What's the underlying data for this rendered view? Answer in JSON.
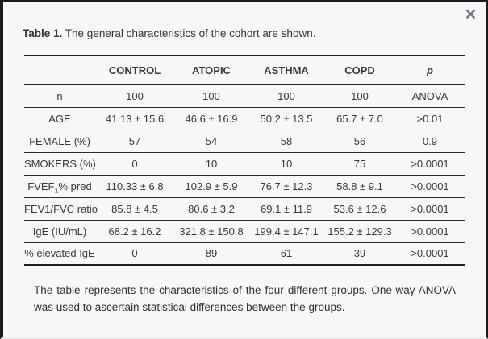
{
  "window": {
    "close_icon": "✕"
  },
  "caption": {
    "label": "Table 1.",
    "text": "The general characteristics of the cohort are shown."
  },
  "table": {
    "columns": [
      "",
      "CONTROL",
      "ATOPIC",
      "ASTHMA",
      "COPD",
      "p"
    ],
    "rows": [
      {
        "label": "n",
        "values": [
          "100",
          "100",
          "100",
          "100",
          "ANOVA"
        ]
      },
      {
        "label": "AGE",
        "values": [
          "41.13 ± 15.6",
          "46.6 ± 16.9",
          "50.2 ± 13.5",
          "65.7 ± 7.0",
          ">0.01"
        ]
      },
      {
        "label": "FEMALE (%)",
        "values": [
          "57",
          "54",
          "58",
          "56",
          "0.9"
        ]
      },
      {
        "label": "SMOKERS (%)",
        "values": [
          "0",
          "10",
          "10",
          "75",
          ">0.0001"
        ]
      },
      {
        "label_pre": "FVEF",
        "label_sub": "1",
        "label_post": "% pred",
        "values": [
          "110.33 ± 6.8",
          "102.9 ± 5.9",
          "76.7 ± 12.3",
          "58.8 ± 9.1",
          ">0.0001"
        ]
      },
      {
        "label": "FEV1/FVC ratio",
        "values": [
          "85.8 ± 4.5",
          "80.6 ± 3.2",
          "69.1 ± 11.9",
          "53.6 ± 12.6",
          ">0.0001"
        ]
      },
      {
        "label": "IgE (IU/mL)",
        "values": [
          "68.2 ± 16.2",
          "321.8 ± 150.8",
          "199.4 ± 147.1",
          "155.2 ± 129.3",
          ">0.0001"
        ]
      },
      {
        "label": "% elevated IgE",
        "values": [
          "0",
          "89",
          "61",
          "39",
          ">0.0001"
        ]
      }
    ]
  },
  "footnote": {
    "text": "The table represents the characteristics of the four different groups. One-way ANOVA was used to ascertain statistical differences between the groups."
  }
}
